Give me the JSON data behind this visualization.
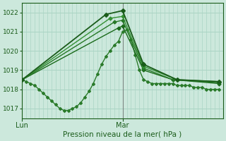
{
  "xlabel": "Pression niveau de la mer( hPa )",
  "background_color": "#cce8dc",
  "grid_color": "#aad4c4",
  "ylim": [
    1016.5,
    1022.5
  ],
  "yticks": [
    1017,
    1018,
    1019,
    1020,
    1021,
    1022
  ],
  "xlim": [
    0,
    48
  ],
  "lun_x": 0,
  "mar_x": 24,
  "series": [
    {
      "x": [
        0,
        1,
        2,
        3,
        4,
        5,
        6,
        7,
        8,
        9,
        10,
        11,
        12,
        13,
        14,
        15,
        16,
        17,
        18,
        19,
        20,
        21,
        22,
        23,
        24,
        25,
        26,
        27,
        28,
        29,
        30,
        31,
        32,
        33,
        34,
        35,
        36,
        37,
        38,
        39,
        40,
        41,
        42,
        43,
        44,
        45,
        46,
        47
      ],
      "y": [
        1018.5,
        1018.4,
        1018.3,
        1018.2,
        1018.0,
        1017.8,
        1017.6,
        1017.4,
        1017.2,
        1017.0,
        1016.9,
        1016.9,
        1017.0,
        1017.1,
        1017.3,
        1017.6,
        1017.9,
        1018.3,
        1018.8,
        1019.3,
        1019.7,
        1020.0,
        1020.3,
        1020.5,
        1021.0,
        1021.1,
        1020.6,
        1019.8,
        1019.0,
        1018.5,
        1018.4,
        1018.3,
        1018.3,
        1018.3,
        1018.3,
        1018.3,
        1018.3,
        1018.2,
        1018.2,
        1018.2,
        1018.2,
        1018.1,
        1018.1,
        1018.1,
        1018.0,
        1018.0,
        1018.0,
        1018.0
      ],
      "color": "#2a7a2a",
      "lw": 1.0,
      "marker": "D",
      "ms": 2.0
    },
    {
      "x": [
        0,
        23,
        24,
        29,
        36,
        47
      ],
      "y": [
        1018.5,
        1021.2,
        1021.3,
        1019.0,
        1018.5,
        1018.3
      ],
      "color": "#1a6a1a",
      "lw": 1.0,
      "marker": "D",
      "ms": 2.5
    },
    {
      "x": [
        0,
        22,
        24,
        29,
        36,
        47
      ],
      "y": [
        1018.5,
        1021.5,
        1021.6,
        1019.1,
        1018.5,
        1018.35
      ],
      "color": "#267826",
      "lw": 1.0,
      "marker": "D",
      "ms": 2.5
    },
    {
      "x": [
        0,
        21,
        24,
        29,
        37,
        47
      ],
      "y": [
        1018.5,
        1021.7,
        1021.8,
        1019.2,
        1018.5,
        1018.4
      ],
      "color": "#349034",
      "lw": 1.0,
      "marker": "D",
      "ms": 2.5
    },
    {
      "x": [
        0,
        20,
        24,
        29,
        37,
        47
      ],
      "y": [
        1018.5,
        1021.9,
        1022.1,
        1019.3,
        1018.5,
        1018.4
      ],
      "color": "#1a5c1a",
      "lw": 1.3,
      "marker": "D",
      "ms": 3.0
    }
  ],
  "vline_x": 24,
  "vline_color": "#666666",
  "lun_label": "Lun",
  "mar_label": "Mar",
  "label_color": "#1a5c1a",
  "tick_color": "#1a5c1a"
}
